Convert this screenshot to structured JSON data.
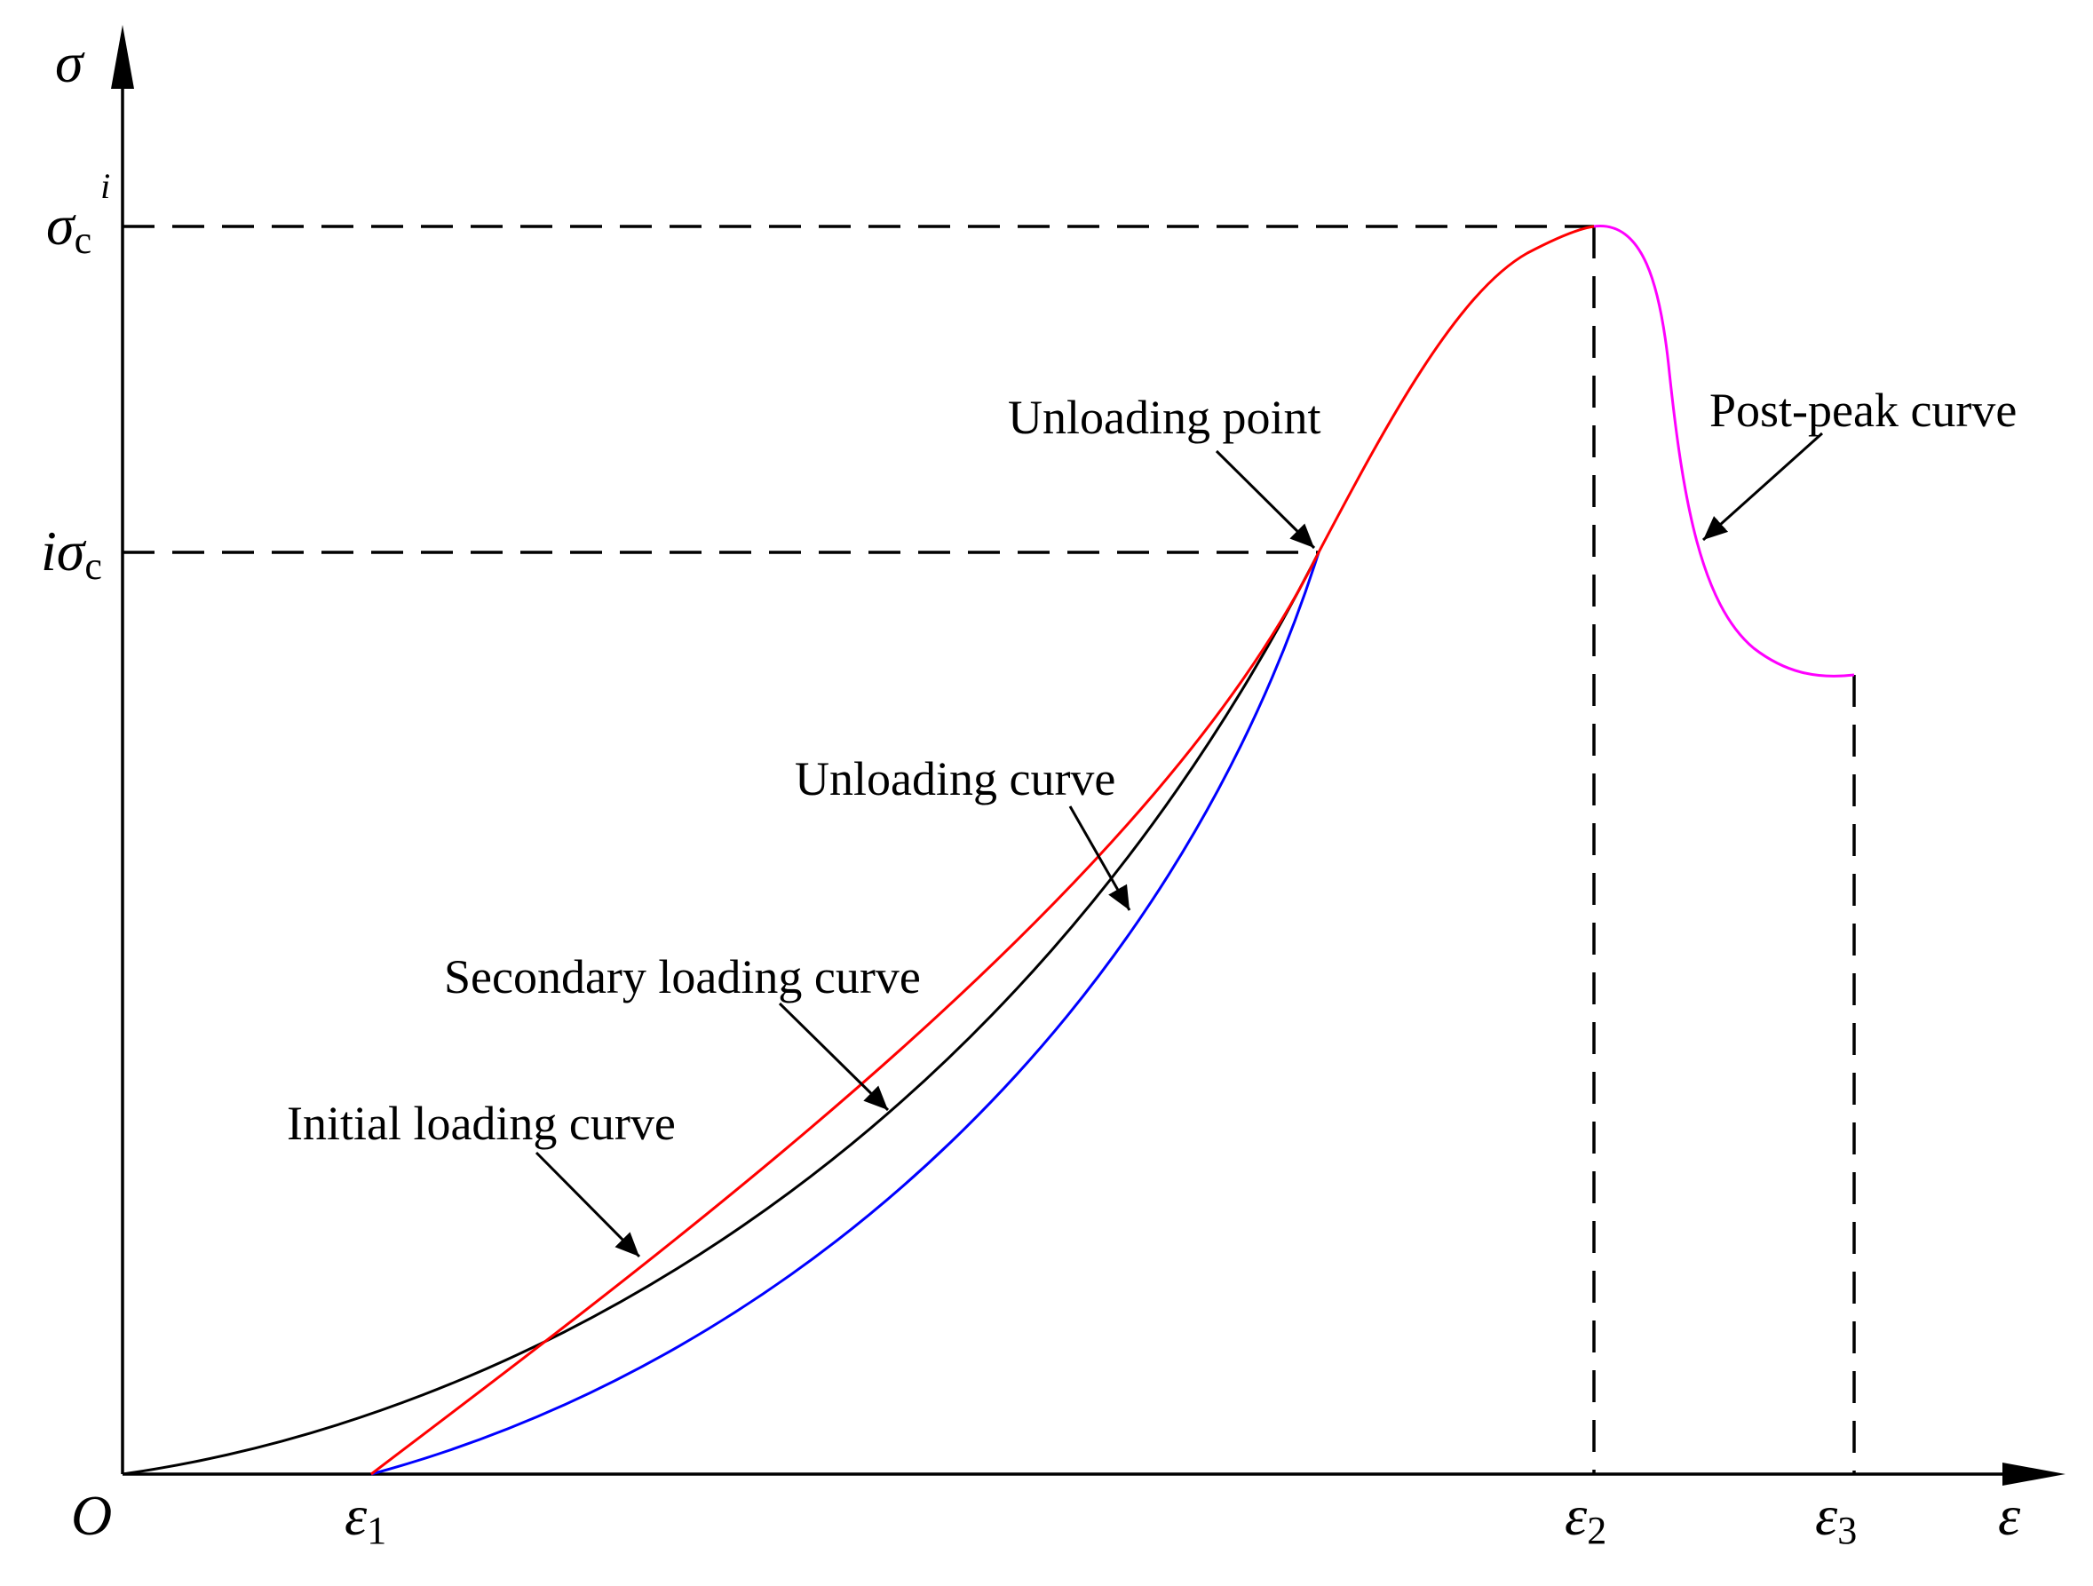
{
  "axes": {
    "y_label": "σ",
    "x_label": "ε",
    "origin": "O"
  },
  "y_ticks": {
    "peak": {
      "prefix": "",
      "symbol": "σ",
      "sub": "c",
      "sup": "i"
    },
    "unload": {
      "prefix": "i",
      "symbol": "σ",
      "sub": "c",
      "sup": ""
    }
  },
  "x_ticks": {
    "e1": {
      "symbol": "ε",
      "sub": "1"
    },
    "e2": {
      "symbol": "ε",
      "sub": "2"
    },
    "e3": {
      "symbol": "ε",
      "sub": "3"
    }
  },
  "curves": {
    "initial": {
      "label": "Initial loading curve",
      "color": "#000000"
    },
    "secondary": {
      "label": "Secondary loading curve",
      "color": "#ff0000"
    },
    "unloading": {
      "label": "Unloading curve",
      "color": "#0000ff"
    },
    "postpeak": {
      "label": "Post-peak curve",
      "color": "#ff00ff"
    }
  },
  "annotations": {
    "unloading_point": "Unloading point"
  }
}
